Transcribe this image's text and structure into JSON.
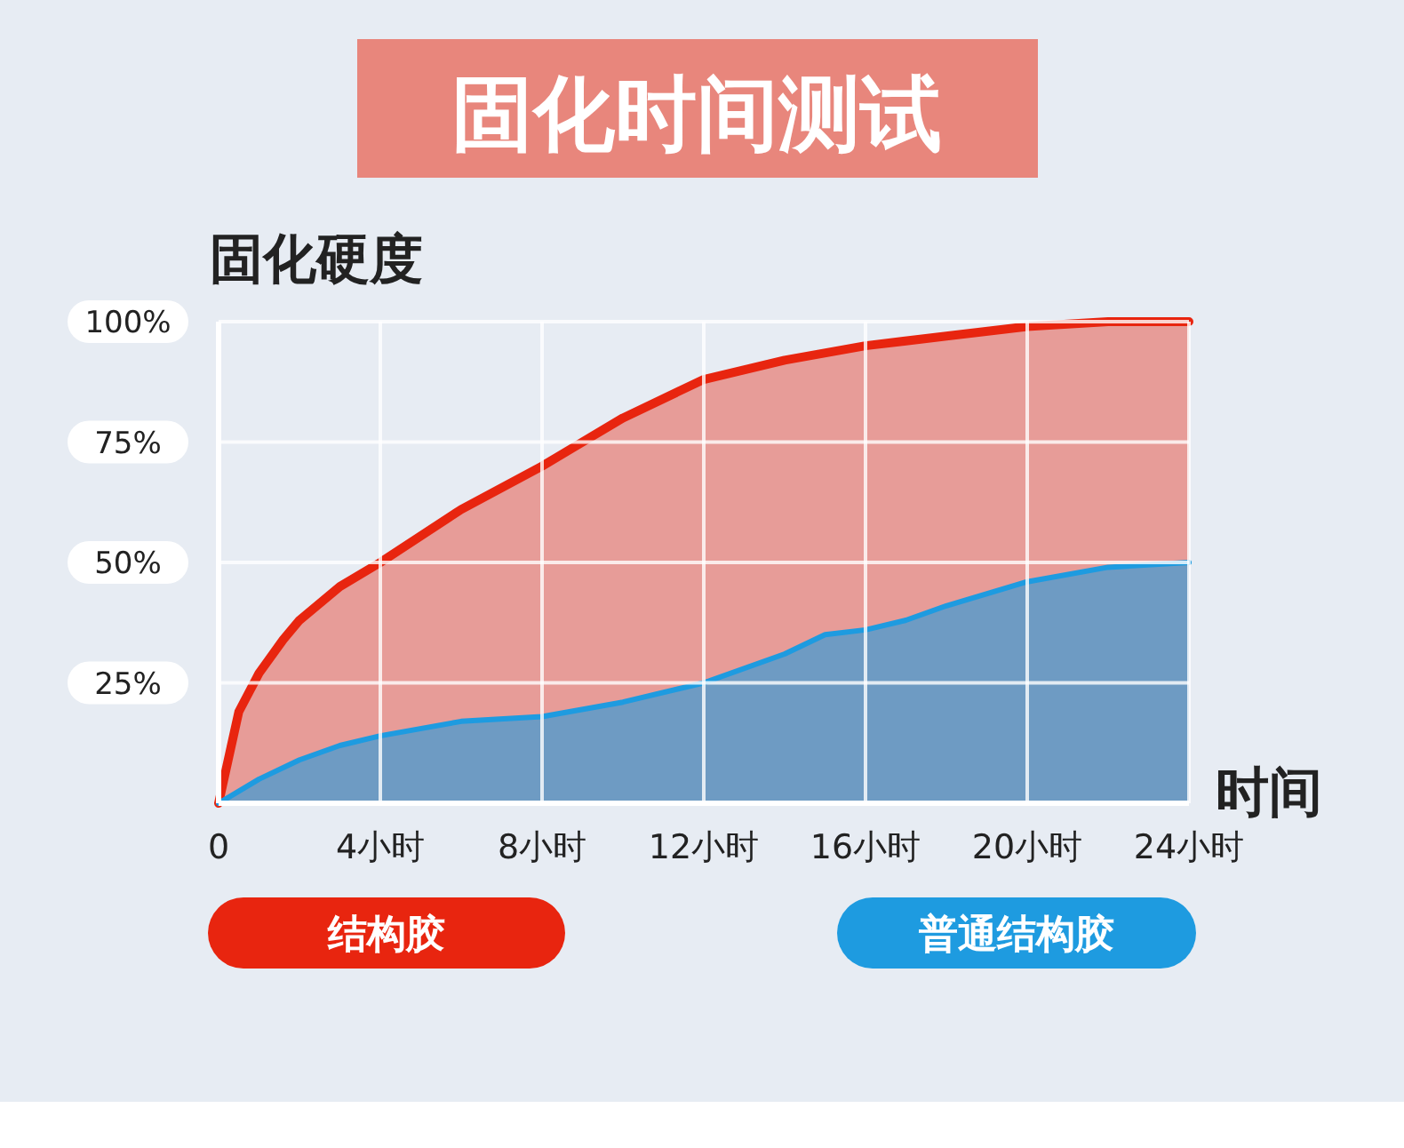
{
  "chart_data": {
    "type": "area",
    "title": "固化时间测试",
    "ylabel": "固化硬度",
    "xlabel": "时间",
    "xlim": [
      0,
      24
    ],
    "xticks": [
      0,
      {
        "value": 4,
        "label": "4小时"
      },
      {
        "value": 8,
        "label": "8小时"
      },
      {
        "value": 12,
        "label": "12小时"
      },
      {
        "value": 16,
        "label": "16小时"
      },
      {
        "value": 20,
        "label": "20小时"
      },
      {
        "value": 24,
        "label": "24小时"
      }
    ],
    "ylim": [
      0,
      100
    ],
    "yticks": [
      {
        "value": 25,
        "label": "25%"
      },
      {
        "value": 50,
        "label": "50%"
      },
      {
        "value": 75,
        "label": "75%"
      },
      {
        "value": 100,
        "label": "100%"
      }
    ],
    "grid": true,
    "legend": "bottom",
    "series": [
      {
        "name": "结构胶",
        "color": "#e8250f",
        "x": [
          0,
          0.5,
          1,
          1.6,
          2,
          3,
          4,
          6,
          8,
          10,
          12,
          14,
          16,
          18,
          20,
          22,
          24
        ],
        "values": [
          0,
          19,
          27,
          34,
          38,
          45,
          50,
          61,
          70,
          80,
          88,
          92,
          95,
          97,
          99,
          100,
          100
        ]
      },
      {
        "name": "普通结构胶",
        "color": "#1e9be0",
        "x": [
          0,
          1,
          2,
          3,
          4,
          6,
          8,
          10,
          12,
          14,
          15,
          16,
          17,
          18,
          20,
          22,
          24
        ],
        "values": [
          0,
          5,
          9,
          12,
          14,
          17,
          18,
          21,
          25,
          31,
          35,
          36,
          38,
          41,
          46,
          49,
          50
        ]
      }
    ]
  }
}
